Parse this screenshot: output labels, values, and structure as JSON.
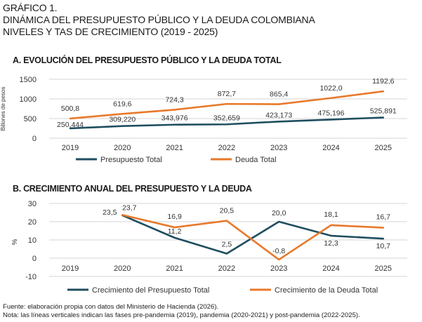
{
  "header": {
    "line1": "GRÁFICO 1.",
    "line2": "DINÁMICA DEL PRESUPUESTO PÚBLICO Y LA DEUDA COLOMBIANA",
    "line3": "NIVELES Y TAS DE CRECIMIENTO (2019 - 2025)"
  },
  "chart_data": [
    {
      "type": "line",
      "title": "A. EVOLUCIÓN DEL PRESUPUESTO PÚBLICO Y LA DEUDA TOTAL",
      "xlabel": "",
      "ylabel": "Billones de pesos",
      "x": [
        "2019",
        "2020",
        "2021",
        "2022",
        "2023",
        "2024",
        "2025"
      ],
      "yticks": [
        "0",
        "500",
        "1000",
        "1500"
      ],
      "ylim": [
        0,
        1500
      ],
      "grid": true,
      "legend": "bottom",
      "series": [
        {
          "name": "Presupuesto Total",
          "color": "#1f4e5f",
          "values": [
            250.444,
            309.22,
            343.976,
            352.659,
            423.173,
            475.196,
            525.891
          ],
          "labels": [
            "250,444",
            "309,220",
            "343,976",
            "352,659",
            "423,173",
            "475,196",
            "525,891"
          ]
        },
        {
          "name": "Deuda Total",
          "color": "#e8792b",
          "values": [
            500.8,
            619.6,
            724.3,
            872.7,
            865.4,
            1022.0,
            1192.6
          ],
          "labels": [
            "500,8",
            "619,6",
            "724,3",
            "872,7",
            "865,4",
            "1022,0",
            "1192,6"
          ]
        }
      ]
    },
    {
      "type": "line",
      "title": "B. CRECIMIENTO ANUAL DEL PRESUPUESTO Y LA DEUDA",
      "xlabel": "",
      "ylabel": "%",
      "x": [
        "2019",
        "2020",
        "2021",
        "2022",
        "2023",
        "2024",
        "2025"
      ],
      "yticks": [
        "-10",
        "0",
        "10",
        "20",
        "30"
      ],
      "ylim": [
        -10,
        30
      ],
      "grid": true,
      "legend": "bottom",
      "series": [
        {
          "name": "Crecimiento del Presupuesto Total",
          "color": "#1f4e5f",
          "values": [
            null,
            23.5,
            11.2,
            2.5,
            20.0,
            12.3,
            10.7
          ],
          "labels": [
            null,
            "23,5",
            "11,2",
            "2,5",
            "20,0",
            "12,3",
            "10,7"
          ]
        },
        {
          "name": "Crecimiento de la Deuda Total",
          "color": "#e8792b",
          "values": [
            null,
            23.7,
            16.9,
            20.5,
            -0.8,
            18.1,
            16.7
          ],
          "labels": [
            null,
            "23,7",
            "16,9",
            "20,5",
            "-0,8",
            "18,1",
            "16,7"
          ]
        }
      ]
    }
  ],
  "footer": {
    "source": "Fuente: elaboración propia con datos del Ministerio de Hacienda (2026).",
    "note": "Nota: las líneas verticales indican las fases pre-pandemia (2019), pandemia (2020-2021) y post-pandemia (2022-2025)."
  }
}
